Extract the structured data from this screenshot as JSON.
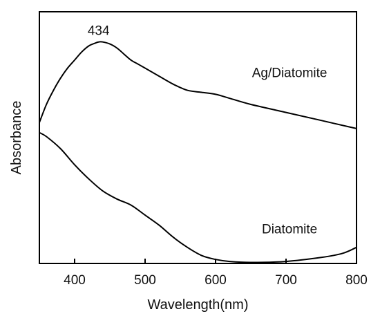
{
  "chart_data": {
    "type": "line",
    "xlabel": "Wavelength(nm)",
    "ylabel": "Absorbance",
    "xlim": [
      350,
      800
    ],
    "x_ticks": [
      400,
      500,
      600,
      700,
      800
    ],
    "y_ticks_shown": false,
    "grid": false,
    "legend": "none (series labeled inline on plot)",
    "series": [
      {
        "name": "Ag/Diatomite",
        "color": "#000000",
        "x": [
          350,
          360,
          370,
          380,
          390,
          400,
          410,
          420,
          430,
          434,
          440,
          450,
          460,
          470,
          480,
          490,
          500,
          520,
          540,
          560,
          580,
          600,
          620,
          650,
          700,
          750,
          800
        ],
        "y": [
          0.56,
          0.632,
          0.688,
          0.736,
          0.776,
          0.808,
          0.84,
          0.864,
          0.876,
          0.88,
          0.88,
          0.872,
          0.856,
          0.832,
          0.808,
          0.792,
          0.776,
          0.744,
          0.712,
          0.688,
          0.68,
          0.672,
          0.656,
          0.632,
          0.6,
          0.568,
          0.536
        ]
      },
      {
        "name": "Diatomite",
        "color": "#000000",
        "x": [
          350,
          360,
          380,
          400,
          420,
          440,
          460,
          480,
          500,
          520,
          540,
          560,
          580,
          600,
          620,
          650,
          700,
          750,
          780,
          800
        ],
        "y": [
          0.52,
          0.504,
          0.456,
          0.392,
          0.336,
          0.288,
          0.256,
          0.232,
          0.192,
          0.152,
          0.104,
          0.064,
          0.032,
          0.016,
          0.008,
          0.004,
          0.008,
          0.024,
          0.04,
          0.064
        ]
      }
    ],
    "annotations": [
      {
        "text": "434",
        "x": 434,
        "y": 0.88
      },
      {
        "text": "Ag/Diatomite",
        "x": 705,
        "y": 0.74
      },
      {
        "text": "Diatomite",
        "x": 705,
        "y": 0.12
      }
    ]
  }
}
